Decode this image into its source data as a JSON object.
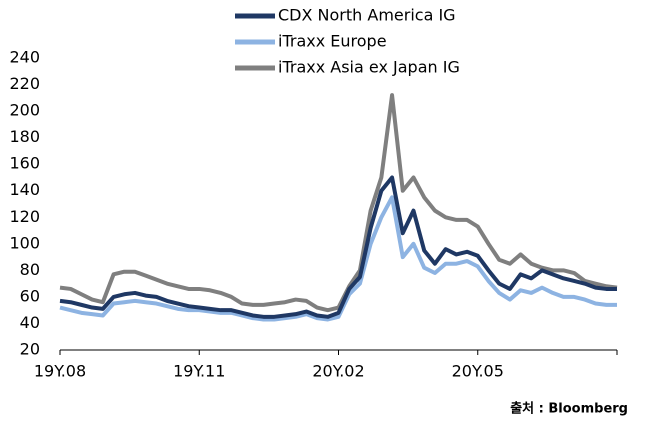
{
  "chart_data": {
    "type": "line",
    "categories": [
      "19Y.08",
      null,
      null,
      null,
      null,
      null,
      null,
      null,
      null,
      null,
      null,
      null,
      null,
      "19Y.11",
      null,
      null,
      null,
      null,
      null,
      null,
      null,
      null,
      null,
      null,
      null,
      null,
      "20Y.02",
      null,
      null,
      null,
      null,
      null,
      null,
      null,
      null,
      null,
      null,
      null,
      null,
      "20Y.05",
      null,
      null,
      null,
      null,
      null,
      null,
      null,
      null,
      null,
      null,
      null,
      null,
      null
    ],
    "series": [
      {
        "name": "CDX North America IG",
        "color": "#1f3864",
        "values": [
          57,
          56,
          54,
          52,
          51,
          60,
          62,
          63,
          61,
          60,
          57,
          55,
          53,
          52,
          51,
          50,
          50,
          48,
          46,
          45,
          45,
          46,
          47,
          49,
          46,
          45,
          48,
          66,
          75,
          112,
          140,
          150,
          108,
          125,
          95,
          85,
          96,
          92,
          94,
          91,
          80,
          70,
          66,
          77,
          74,
          80,
          77,
          74,
          72,
          70,
          67,
          66,
          66
        ]
      },
      {
        "name": "iTraxx Europe",
        "color": "#8db3e2",
        "values": [
          52,
          50,
          48,
          47,
          46,
          55,
          56,
          57,
          56,
          55,
          53,
          51,
          50,
          50,
          49,
          48,
          48,
          46,
          44,
          43,
          43,
          44,
          45,
          47,
          44,
          43,
          45,
          62,
          70,
          100,
          120,
          135,
          90,
          100,
          82,
          78,
          85,
          85,
          87,
          83,
          72,
          63,
          58,
          65,
          63,
          67,
          63,
          60,
          60,
          58,
          55,
          54,
          54
        ]
      },
      {
        "name": "iTraxx Asia ex Japan IG",
        "color": "#7f7f7f",
        "values": [
          67,
          66,
          62,
          58,
          56,
          77,
          79,
          79,
          76,
          73,
          70,
          68,
          66,
          66,
          65,
          63,
          60,
          55,
          54,
          54,
          55,
          56,
          58,
          57,
          52,
          50,
          52,
          68,
          80,
          125,
          150,
          212,
          140,
          150,
          135,
          125,
          120,
          118,
          118,
          113,
          100,
          88,
          85,
          92,
          85,
          82,
          80,
          80,
          78,
          72,
          70,
          68,
          67
        ]
      }
    ],
    "ylim": [
      20,
      240
    ],
    "yticks": [
      20,
      40,
      60,
      80,
      100,
      120,
      140,
      160,
      180,
      200,
      220,
      240
    ],
    "source": "출처 : Bloomberg"
  }
}
